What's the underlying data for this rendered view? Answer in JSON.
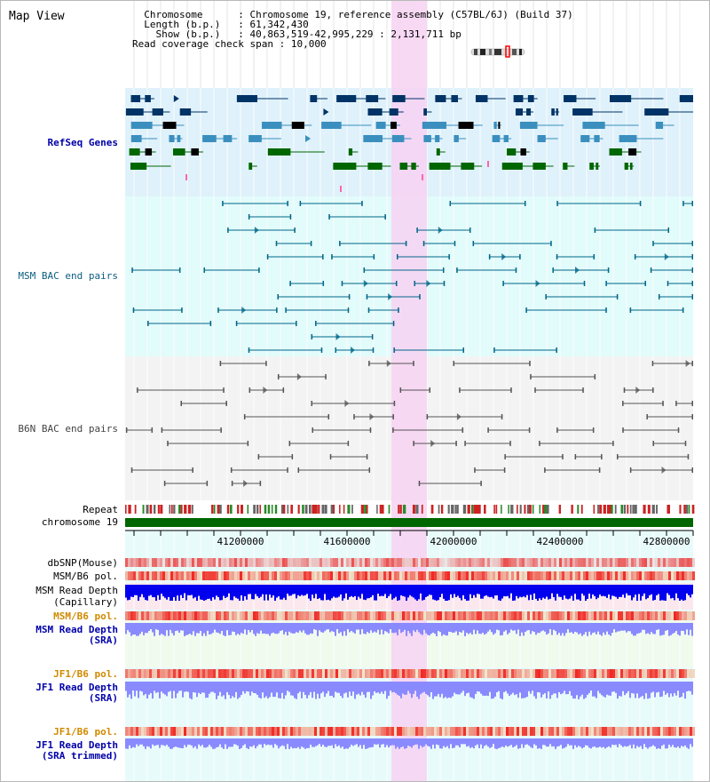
{
  "title": "Map View",
  "info": {
    "chromosome_key": "Chromosome",
    "chromosome_val": "Chromosome 19, reference assembly (C57BL/6J) (Build 37)",
    "length_key": "Length (b.p.)",
    "length_val": "61,342,430",
    "show_key": "Show (b.p.)",
    "show_val": "40,863,519-42,995,229 : 2,131,711 bp",
    "coverage_key": "Read coverage check span",
    "coverage_val": "10,000"
  },
  "tracks": {
    "refseq": "RefSeq Genes",
    "msm_bac": "MSM BAC end pairs",
    "b6n_bac": "B6N BAC end pairs",
    "repeat": "Repeat",
    "chromosome": "chromosome 19",
    "dbsnp": "dbSNP(Mouse)",
    "msm_b6_pol_1": "MSM/B6 pol.",
    "msm_read_depth_cap_1": "MSM Read Depth",
    "msm_read_depth_cap_2": "(Capillary)",
    "msm_b6_pol_2": "MSM/B6 pol.",
    "msm_read_depth_sra_1": "MSM Read Depth",
    "msm_read_depth_sra_2": "(SRA)",
    "jf1_b6_pol_1": "JF1/B6 pol.",
    "jf1_read_depth_sra_1": "JF1 Read Depth",
    "jf1_read_depth_sra_2": "(SRA)",
    "jf1_b6_pol_2": "JF1/B6 pol.",
    "jf1_read_depth_trim_1": "JF1 Read Depth",
    "jf1_read_depth_trim_2": "(SRA trimmed)"
  },
  "axis": {
    "ticks": [
      "41200000",
      "41600000",
      "42000000",
      "42400000",
      "42800000"
    ]
  },
  "colors": {
    "refseq_bg": "#dff1fb",
    "msm_bac_bg": "#e2fbfb",
    "b6n_bg": "#f3f3f3",
    "highlight": "#f7d2f2",
    "chromosome_bar": "#006600",
    "depth_blue": "#0000ee",
    "depth_light": "#8a8aff",
    "pol_red": "#e83030"
  }
}
